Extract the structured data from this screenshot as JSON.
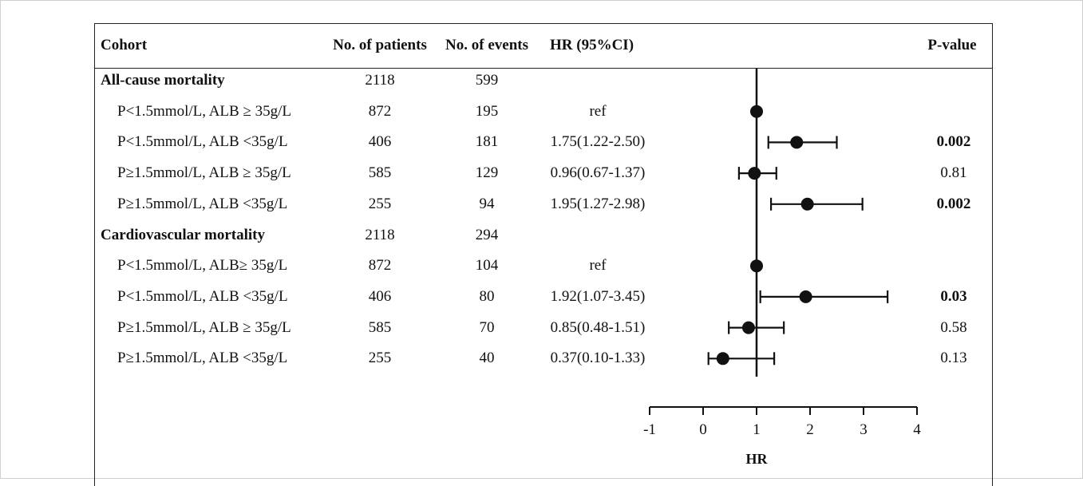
{
  "headers": {
    "cohort": "Cohort",
    "patients": "No. of patients",
    "events": "No. of events",
    "hr": "HR (95%CI)",
    "pvalue": "P-value"
  },
  "rows": [
    {
      "label": "All-cause mortality",
      "patients": "2118",
      "events": "599",
      "hr_text": "",
      "p": "",
      "group": true,
      "p_bold": false
    },
    {
      "label": "P<1.5mmol/L, ALB ≥ 35g/L",
      "patients": "872",
      "events": "195",
      "hr_text": "ref",
      "p": "",
      "group": false,
      "p_bold": false
    },
    {
      "label": "P<1.5mmol/L, ALB <35g/L",
      "patients": "406",
      "events": "181",
      "hr_text": "1.75(1.22-2.50)",
      "p": "0.002",
      "group": false,
      "p_bold": true
    },
    {
      "label": "P≥1.5mmol/L, ALB ≥ 35g/L",
      "patients": "585",
      "events": "129",
      "hr_text": "0.96(0.67-1.37)",
      "p": "0.81",
      "group": false,
      "p_bold": false
    },
    {
      "label": "P≥1.5mmol/L, ALB <35g/L",
      "patients": "255",
      "events": "94",
      "hr_text": "1.95(1.27-2.98)",
      "p": "0.002",
      "group": false,
      "p_bold": true
    },
    {
      "label": "Cardiovascular mortality",
      "patients": "2118",
      "events": "294",
      "hr_text": "",
      "p": "",
      "group": true,
      "p_bold": false
    },
    {
      "label": "P<1.5mmol/L, ALB≥ 35g/L",
      "patients": "872",
      "events": "104",
      "hr_text": "ref",
      "p": "",
      "group": false,
      "p_bold": false
    },
    {
      "label": "P<1.5mmol/L, ALB <35g/L",
      "patients": "406",
      "events": "80",
      "hr_text": "1.92(1.07-3.45)",
      "p": "0.03",
      "group": false,
      "p_bold": true
    },
    {
      "label": "P≥1.5mmol/L, ALB ≥ 35g/L",
      "patients": "585",
      "events": "70",
      "hr_text": "0.85(0.48-1.51)",
      "p": "0.58",
      "group": false,
      "p_bold": false
    },
    {
      "label": "P≥1.5mmol/L, ALB <35g/L",
      "patients": "255",
      "events": "40",
      "hr_text": "0.37(0.10-1.33)",
      "p": "0.13",
      "group": false,
      "p_bold": false
    }
  ],
  "chart_data": {
    "type": "forest",
    "xlabel": "HR",
    "xlim": [
      -1,
      4
    ],
    "xticks": [
      "-1",
      "0",
      "1",
      "2",
      "3",
      "4"
    ],
    "reference_line": 1,
    "points": [
      {
        "row": 1,
        "hr": 1.0,
        "lo": null,
        "hi": null
      },
      {
        "row": 2,
        "hr": 1.75,
        "lo": 1.22,
        "hi": 2.5
      },
      {
        "row": 3,
        "hr": 0.96,
        "lo": 0.67,
        "hi": 1.37
      },
      {
        "row": 4,
        "hr": 1.95,
        "lo": 1.27,
        "hi": 2.98
      },
      {
        "row": 6,
        "hr": 1.0,
        "lo": null,
        "hi": null
      },
      {
        "row": 7,
        "hr": 1.92,
        "lo": 1.07,
        "hi": 3.45
      },
      {
        "row": 8,
        "hr": 0.85,
        "lo": 0.48,
        "hi": 1.51
      },
      {
        "row": 9,
        "hr": 0.37,
        "lo": 0.1,
        "hi": 1.33
      }
    ]
  }
}
